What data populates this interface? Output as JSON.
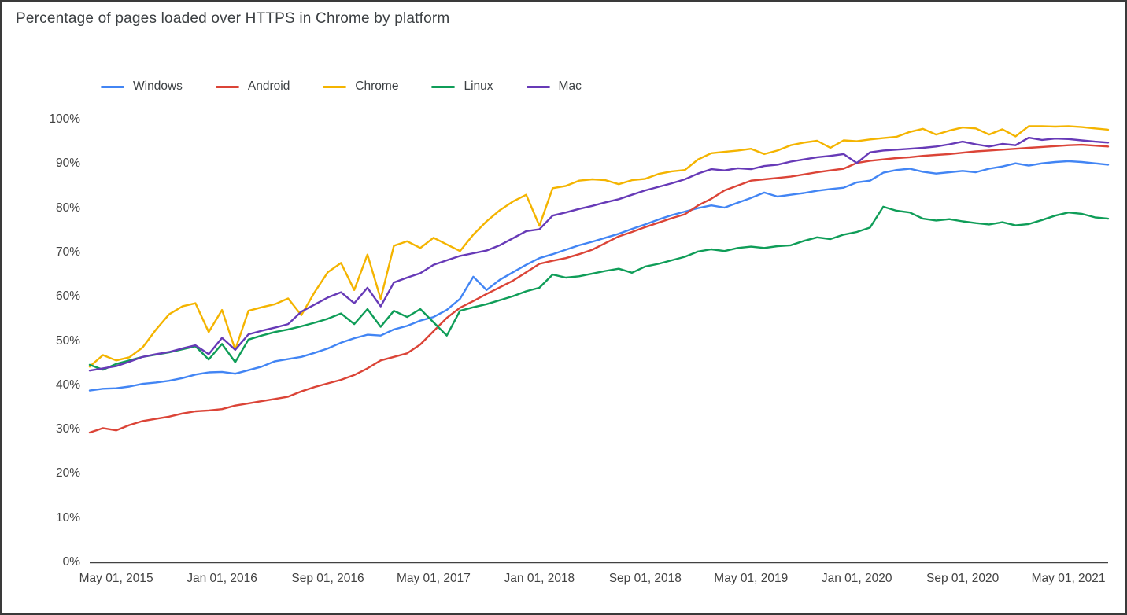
{
  "frame": {
    "background_color": "#ffffff",
    "border_color": "#3a3a3a",
    "axis_line_color": "#424242",
    "text_color": "#3c4043",
    "tick_text_color": "#424242"
  },
  "chart_data": {
    "type": "line",
    "title": "Percentage of pages loaded over HTTPS in Chrome by platform",
    "xlabel": "",
    "ylabel": "",
    "grid": false,
    "legend_position": "top-left",
    "y_axis": {
      "min": 0,
      "max": 100,
      "step": 10,
      "suffix": "%"
    },
    "y_tick_labels": [
      "0%",
      "10%",
      "20%",
      "30%",
      "40%",
      "50%",
      "60%",
      "70%",
      "80%",
      "90%",
      "100%"
    ],
    "x_tick_labels": [
      "May 01, 2015",
      "Jan 01, 2016",
      "Sep 01, 2016",
      "May 01, 2017",
      "Jan 01, 2018",
      "Sep 01, 2018",
      "May 01, 2019",
      "Jan 01, 2020",
      "Sep 01, 2020",
      "May 01, 2021"
    ],
    "x_tick_indices": [
      2,
      10,
      18,
      26,
      34,
      42,
      50,
      58,
      66,
      74
    ],
    "x_unit": "month",
    "x_range_note": "monthly samples, Mar 2015 through Aug 2021",
    "n_points": 78,
    "series": [
      {
        "name": "Windows",
        "color": "#4285F4",
        "values": [
          38.8,
          39.2,
          39.3,
          39.7,
          40.3,
          40.6,
          41.0,
          41.6,
          42.4,
          42.9,
          43.0,
          42.6,
          43.4,
          44.2,
          45.4,
          45.9,
          46.4,
          47.3,
          48.3,
          49.6,
          50.6,
          51.4,
          51.2,
          52.6,
          53.4,
          54.6,
          55.4,
          57.0,
          59.5,
          64.5,
          61.5,
          63.8,
          65.5,
          67.2,
          68.7,
          69.6,
          70.6,
          71.6,
          72.4,
          73.3,
          74.2,
          75.3,
          76.3,
          77.4,
          78.4,
          79.2,
          80.0,
          80.6,
          80.1,
          81.2,
          82.3,
          83.5,
          82.6,
          83.0,
          83.4,
          83.9,
          84.3,
          84.6,
          85.8,
          86.2,
          88.0,
          88.6,
          88.9,
          88.2,
          87.8,
          88.1,
          88.4,
          88.1,
          88.9,
          89.4,
          90.1,
          89.6,
          90.1,
          90.4,
          90.6,
          90.4,
          90.1,
          89.8
        ]
      },
      {
        "name": "Android",
        "color": "#DB4437",
        "values": [
          29.3,
          30.3,
          29.8,
          31.0,
          31.9,
          32.4,
          32.9,
          33.6,
          34.1,
          34.3,
          34.6,
          35.4,
          35.9,
          36.4,
          36.9,
          37.4,
          38.6,
          39.6,
          40.4,
          41.2,
          42.3,
          43.8,
          45.6,
          46.4,
          47.2,
          49.2,
          52.2,
          55.2,
          57.5,
          59.0,
          60.6,
          62.1,
          63.6,
          65.5,
          67.4,
          68.1,
          68.7,
          69.6,
          70.6,
          72.1,
          73.6,
          74.6,
          75.7,
          76.7,
          77.7,
          78.6,
          80.6,
          82.1,
          84.0,
          85.1,
          86.2,
          86.5,
          86.8,
          87.1,
          87.6,
          88.1,
          88.5,
          88.9,
          90.2,
          90.7,
          91.0,
          91.3,
          91.5,
          91.8,
          92.0,
          92.2,
          92.5,
          92.8,
          93.0,
          93.2,
          93.4,
          93.6,
          93.8,
          94.0,
          94.2,
          94.3,
          94.1,
          93.9
        ]
      },
      {
        "name": "Chrome",
        "color": "#F4B400",
        "values": [
          44.2,
          46.8,
          45.6,
          46.3,
          48.5,
          52.5,
          56.0,
          57.8,
          58.5,
          52.0,
          57.0,
          48.0,
          56.8,
          57.6,
          58.3,
          59.6,
          55.8,
          61.0,
          65.5,
          67.6,
          61.5,
          69.5,
          59.5,
          71.5,
          72.5,
          71.0,
          73.3,
          71.8,
          70.3,
          74.0,
          77.0,
          79.5,
          81.5,
          83.0,
          76.0,
          84.5,
          85.0,
          86.2,
          86.5,
          86.3,
          85.4,
          86.3,
          86.6,
          87.7,
          88.3,
          88.6,
          91.0,
          92.4,
          92.7,
          93.0,
          93.4,
          92.2,
          93.0,
          94.2,
          94.8,
          95.2,
          93.6,
          95.3,
          95.1,
          95.5,
          95.8,
          96.1,
          97.2,
          97.9,
          96.6,
          97.5,
          98.2,
          98.0,
          96.6,
          97.8,
          96.2,
          98.5,
          98.5,
          98.4,
          98.5,
          98.3,
          98.0,
          97.7
        ]
      },
      {
        "name": "Linux",
        "color": "#0F9D58",
        "values": [
          44.6,
          43.5,
          44.8,
          45.6,
          46.4,
          46.9,
          47.4,
          48.1,
          48.8,
          45.8,
          49.3,
          45.2,
          50.3,
          51.2,
          52.0,
          52.6,
          53.3,
          54.1,
          55.0,
          56.2,
          53.8,
          57.2,
          53.2,
          56.8,
          55.4,
          57.2,
          54.2,
          51.2,
          56.8,
          57.6,
          58.3,
          59.2,
          60.1,
          61.2,
          62.0,
          65.0,
          64.3,
          64.6,
          65.2,
          65.8,
          66.3,
          65.4,
          66.8,
          67.4,
          68.2,
          69.0,
          70.2,
          70.7,
          70.3,
          71.0,
          71.3,
          71.0,
          71.4,
          71.6,
          72.6,
          73.4,
          73.0,
          74.0,
          74.6,
          75.6,
          80.3,
          79.4,
          79.0,
          77.6,
          77.2,
          77.5,
          77.0,
          76.6,
          76.3,
          76.8,
          76.1,
          76.4,
          77.3,
          78.3,
          79.0,
          78.7,
          77.9,
          77.6
        ]
      },
      {
        "name": "Mac",
        "color": "#673AB7",
        "values": [
          43.3,
          43.8,
          44.3,
          45.3,
          46.4,
          47.0,
          47.5,
          48.3,
          49.0,
          47.0,
          50.7,
          48.0,
          51.5,
          52.3,
          53.0,
          53.8,
          56.6,
          58.2,
          59.8,
          61.0,
          58.5,
          62.0,
          57.8,
          63.2,
          64.3,
          65.3,
          67.2,
          68.2,
          69.2,
          69.8,
          70.4,
          71.6,
          73.2,
          74.8,
          75.2,
          78.3,
          79.0,
          79.8,
          80.5,
          81.3,
          82.0,
          83.0,
          84.0,
          84.8,
          85.6,
          86.5,
          87.8,
          88.8,
          88.5,
          89.0,
          88.8,
          89.5,
          89.8,
          90.5,
          91.0,
          91.5,
          91.8,
          92.2,
          90.2,
          92.6,
          93.0,
          93.2,
          93.4,
          93.6,
          93.9,
          94.4,
          95.0,
          94.4,
          93.9,
          94.5,
          94.2,
          95.9,
          95.4,
          95.7,
          95.6,
          95.3,
          95.0,
          94.8
        ]
      }
    ]
  }
}
